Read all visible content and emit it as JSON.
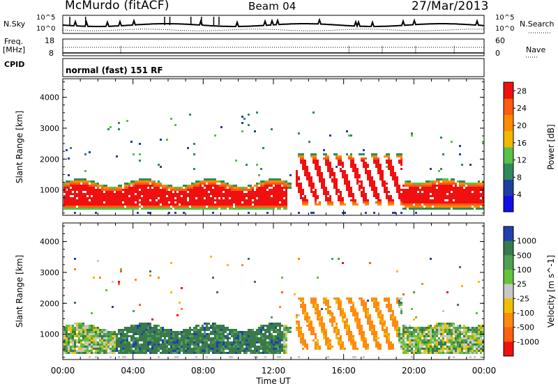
{
  "header": {
    "station": "McMurdo (fitACF)",
    "beam": "Beam 04",
    "date": "27/Mar/2013"
  },
  "side_labels": {
    "nsky": "N.Sky",
    "freq": "Freq.",
    "freq_unit": "[MHz]",
    "cpid": "CPID",
    "nsearch": "N.Search",
    "nave": "Nave"
  },
  "cpid_text": "normal (fast) 151 RF",
  "noise_ticks_left": [
    "10^5",
    "10^0"
  ],
  "noise_ticks_right": [
    "10^5",
    "10^0"
  ],
  "freq_ticks_left": [
    "18",
    "8"
  ],
  "nave_ticks_right": [
    "60",
    "0"
  ],
  "colors": {
    "power": [
      "#1010e6",
      "#1f3fa0",
      "#2f8a5a",
      "#55c24a",
      "#f2b800",
      "#ff8a00",
      "#ff5a10",
      "#f01010"
    ],
    "velocity": [
      "#2040b0",
      "#3a7a4a",
      "#4fa050",
      "#63c43a",
      "#c8c8c8",
      "#f0c000",
      "#ff8a10",
      "#ff6010",
      "#f01010"
    ]
  },
  "chart_data": [
    {
      "type": "heatmap",
      "title": "Power",
      "xlabel": "",
      "ylabel": "Slant Range [km]",
      "x_ticks": [
        "00:00",
        "04:00",
        "08:00",
        "12:00",
        "16:00",
        "20:00",
        "00:00"
      ],
      "xlim_hours": [
        0,
        24
      ],
      "y_ticks": [
        1000,
        2000,
        3000,
        4000
      ],
      "ylim_km": [
        180,
        4600
      ],
      "colorbar_label": "Power [dB]",
      "colorbar_ticks": [
        4,
        8,
        12,
        16,
        20,
        24,
        28
      ],
      "colorbar_range": [
        0,
        30
      ],
      "main_echo_band": [
        {
          "hours": [
            0,
            5
          ],
          "range_km": [
            400,
            1500
          ],
          "level": "high"
        },
        {
          "hours": [
            5,
            8
          ],
          "range_km": [
            450,
            1450
          ],
          "level": "high"
        },
        {
          "hours": [
            8,
            12.5
          ],
          "range_km": [
            500,
            1500
          ],
          "level": "high"
        },
        {
          "hours": [
            13,
            16
          ],
          "range_km": [
            500,
            2400
          ],
          "level": "mixed"
        },
        {
          "hours": [
            16,
            19
          ],
          "range_km": [
            400,
            2300
          ],
          "level": "mixed"
        },
        {
          "hours": [
            19.5,
            24
          ],
          "range_km": [
            400,
            1500
          ],
          "level": "high"
        }
      ]
    },
    {
      "type": "heatmap",
      "title": "Velocity",
      "xlabel": "Time UT",
      "ylabel": "Slant Range [km]",
      "x_ticks": [
        "00:00",
        "04:00",
        "08:00",
        "12:00",
        "16:00",
        "20:00",
        "00:00"
      ],
      "xlim_hours": [
        0,
        24
      ],
      "y_ticks": [
        1000,
        2000,
        3000,
        4000
      ],
      "ylim_km": [
        180,
        4600
      ],
      "colorbar_label": "Velocity [m s^-1]",
      "colorbar_ticks": [
        1000,
        500,
        100,
        25,
        -25,
        -100,
        -500,
        -1000
      ],
      "velocity_regimes": [
        {
          "hours": [
            0,
            3
          ],
          "sign": "mixed"
        },
        {
          "hours": [
            3,
            8
          ],
          "sign": "positive"
        },
        {
          "hours": [
            8,
            12.5
          ],
          "sign": "positive"
        },
        {
          "hours": [
            13,
            19
          ],
          "sign": "negative"
        },
        {
          "hours": [
            19.5,
            24
          ],
          "sign": "mixed"
        }
      ]
    }
  ]
}
